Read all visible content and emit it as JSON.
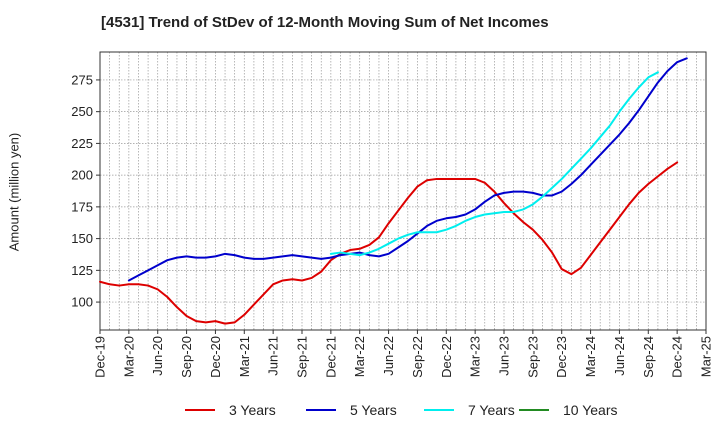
{
  "title": "[4531]  Trend of StDev of 12-Month Moving Sum of Net Incomes",
  "chart_data": {
    "type": "line",
    "title": "[4531]  Trend of StDev of 12-Month Moving Sum of Net Incomes",
    "ylabel": "Amount (million yen)",
    "xlabel": "",
    "ylim": [
      78,
      297
    ],
    "yticks": [
      100,
      125,
      150,
      175,
      200,
      225,
      250,
      275
    ],
    "xticks": [
      "Dec-19",
      "Mar-20",
      "Jun-20",
      "Sep-20",
      "Dec-20",
      "Mar-21",
      "Jun-21",
      "Sep-21",
      "Dec-21",
      "Mar-22",
      "Jun-22",
      "Sep-22",
      "Dec-22",
      "Mar-23",
      "Jun-23",
      "Sep-23",
      "Dec-23",
      "Mar-24",
      "Jun-24",
      "Sep-24",
      "Dec-24",
      "Mar-25"
    ],
    "x_start": "Dec-19",
    "grid": true,
    "legend_position": "bottom",
    "series": [
      {
        "name": "3 Years",
        "color": "#dd0000",
        "start_index": 0,
        "values": [
          116,
          114,
          113,
          114,
          114,
          113,
          110,
          104,
          96,
          89,
          85,
          84,
          85,
          83,
          84,
          90,
          98,
          106,
          114,
          117,
          118,
          117,
          119,
          124,
          133,
          138,
          141,
          142,
          145,
          151,
          162,
          172,
          182,
          191,
          196,
          197,
          197,
          197,
          197,
          197,
          194,
          187,
          178,
          170,
          163,
          157,
          149,
          139,
          126,
          122,
          127,
          137,
          147,
          157,
          167,
          177,
          186,
          193,
          199,
          205,
          210
        ]
      },
      {
        "name": "5 Years",
        "color": "#0000cc",
        "start_index": 3,
        "values": [
          117,
          121,
          125,
          129,
          133,
          135,
          136,
          135,
          135,
          136,
          138,
          137,
          135,
          134,
          134,
          135,
          136,
          137,
          136,
          135,
          134,
          135,
          137,
          138,
          139,
          137,
          136,
          138,
          143,
          148,
          154,
          160,
          164,
          166,
          167,
          169,
          173,
          179,
          184,
          186,
          187,
          187,
          186,
          184,
          184,
          187,
          193,
          200,
          208,
          216,
          224,
          232,
          241,
          251,
          262,
          273,
          282,
          289,
          292
        ]
      },
      {
        "name": "7 Years",
        "color": "#00eeee",
        "start_index": 24,
        "values": [
          138,
          139,
          138,
          137,
          139,
          142,
          146,
          150,
          153,
          155,
          155,
          155,
          157,
          160,
          164,
          167,
          169,
          170,
          171,
          171,
          173,
          177,
          183,
          190,
          197,
          205,
          213,
          221,
          230,
          239,
          250,
          260,
          269,
          277,
          281
        ]
      },
      {
        "name": "10 Years",
        "color": "#228b22",
        "start_index": 0,
        "values": []
      }
    ]
  }
}
